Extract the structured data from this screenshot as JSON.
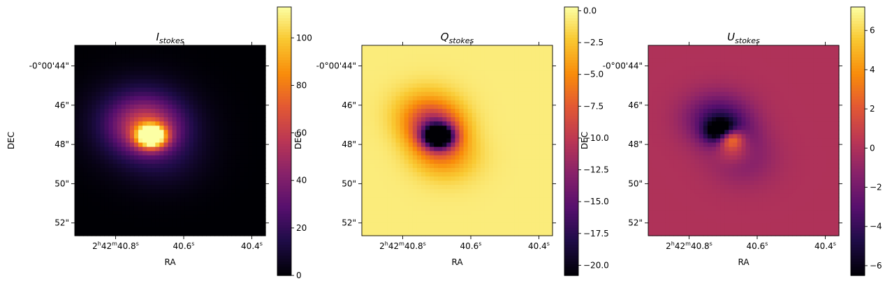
{
  "chart_data": [
    {
      "type": "heatmap",
      "title": "I_stokes",
      "title_base": "I",
      "title_sub": "stokes",
      "xlabel": "RA",
      "ylabel": "DEC",
      "colormap": "inferno",
      "background_value": 0,
      "x_ticks": [
        {
          "value": 40.8,
          "h": "2",
          "m": "42",
          "s": "40.8"
        },
        {
          "value": 40.6,
          "s": "40.6"
        },
        {
          "value": 40.4,
          "s": "40.4"
        }
      ],
      "y_ticks": [
        "-0°00'44\"",
        "46\"",
        "48\"",
        "50\"",
        "52\""
      ],
      "y_tick_values": [
        -44,
        -46,
        -48,
        -50,
        -52
      ],
      "colorbar": {
        "min": 0,
        "max": 113,
        "ticks": [
          0,
          20,
          40,
          60,
          80,
          100
        ]
      },
      "blobs": [
        {
          "ra": 40.695,
          "dec": -47.6,
          "sigma": 0.08,
          "value": 113
        },
        {
          "ra": 40.71,
          "dec": -47.2,
          "sigma": 0.18,
          "value": 40
        },
        {
          "ra": 40.725,
          "dec": -46.5,
          "sigma": 0.22,
          "value": 16
        },
        {
          "ra": 40.72,
          "dec": -47.0,
          "sigma": 0.3,
          "value": 12
        },
        {
          "ra": 40.67,
          "dec": -48.5,
          "sigma": 0.25,
          "value": 6
        },
        {
          "ra": 40.64,
          "dec": -49.0,
          "sigma": 0.2,
          "value": 3
        }
      ]
    },
    {
      "type": "heatmap",
      "title": "Q_stokes",
      "title_base": "Q",
      "title_sub": "stokes",
      "xlabel": "RA",
      "ylabel": "DEC",
      "colormap": "inferno",
      "background_value": -0.6,
      "x_ticks": [
        {
          "value": 40.8,
          "h": "2",
          "m": "42",
          "s": "40.8"
        },
        {
          "value": 40.6,
          "s": "40.6"
        },
        {
          "value": 40.4,
          "s": "40.4"
        }
      ],
      "y_ticks": [
        "-0°00'44\"",
        "46\"",
        "48\"",
        "50\"",
        "52\""
      ],
      "y_tick_values": [
        -44,
        -46,
        -48,
        -50,
        -52
      ],
      "colorbar": {
        "min": -20.8,
        "max": 0.3,
        "ticks": [
          0.0,
          -2.5,
          -5.0,
          -7.5,
          -10.0,
          -12.5,
          -15.0,
          -17.5,
          -20.0
        ]
      },
      "blobs": [
        {
          "ra": 40.695,
          "dec": -47.6,
          "sigma": 0.08,
          "value": -20.3
        },
        {
          "ra": 40.705,
          "dec": -47.2,
          "sigma": 0.14,
          "value": -7.5
        },
        {
          "ra": 40.73,
          "dec": -46.3,
          "sigma": 0.18,
          "value": -3.6
        },
        {
          "ra": 40.715,
          "dec": -46.8,
          "sigma": 0.16,
          "value": -3.0
        },
        {
          "ra": 40.69,
          "dec": -48.2,
          "sigma": 0.15,
          "value": -4.8
        },
        {
          "ra": 40.665,
          "dec": -48.8,
          "sigma": 0.18,
          "value": -2.4
        }
      ]
    },
    {
      "type": "heatmap",
      "title": "U_stokes",
      "title_base": "U",
      "title_sub": "stokes",
      "xlabel": "RA",
      "ylabel": "DEC",
      "colormap": "inferno",
      "background_value": 0,
      "x_ticks": [
        {
          "value": 40.8,
          "h": "2",
          "m": "42",
          "s": "40.8"
        },
        {
          "value": 40.6,
          "s": "40.6"
        },
        {
          "value": 40.4,
          "s": "40.4"
        }
      ],
      "y_ticks": [
        "-0°00'44\"",
        "46\"",
        "48\"",
        "50\"",
        "52\""
      ],
      "y_tick_values": [
        -44,
        -46,
        -48,
        -50,
        -52
      ],
      "colorbar": {
        "min": -6.5,
        "max": 7.2,
        "ticks": [
          6,
          4,
          2,
          0,
          -2,
          -4,
          -6
        ]
      },
      "blobs": [
        {
          "ra": 40.707,
          "dec": -47.35,
          "sigma": 0.08,
          "value": -6.5
        },
        {
          "ra": 40.68,
          "dec": -47.65,
          "sigma": 0.07,
          "value": 7.2
        },
        {
          "ra": 40.72,
          "dec": -46.6,
          "sigma": 0.18,
          "value": -2.5
        },
        {
          "ra": 40.7,
          "dec": -47.0,
          "sigma": 0.16,
          "value": -2.0
        },
        {
          "ra": 40.67,
          "dec": -48.3,
          "sigma": 0.1,
          "value": 3.0
        },
        {
          "ra": 40.64,
          "dec": -48.9,
          "sigma": 0.18,
          "value": -1.2
        },
        {
          "ra": 40.66,
          "dec": -48.0,
          "sigma": 0.15,
          "value": -1.5
        }
      ]
    }
  ]
}
